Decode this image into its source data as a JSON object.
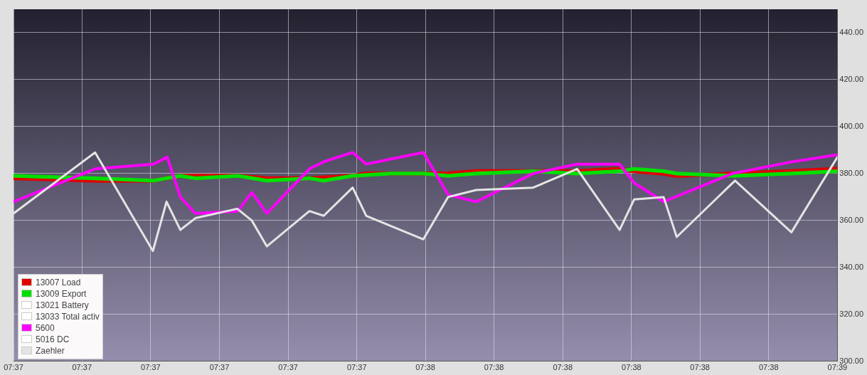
{
  "chart_data": {
    "type": "line",
    "legend": "bottom left",
    "grid": true,
    "marker": "none",
    "line_style": "solid",
    "xlim": [
      7.60917,
      7.6425
    ],
    "xticks": [
      {
        "value": 7.60917,
        "label": "07:37"
      },
      {
        "value": 7.61194,
        "label": "07:37"
      },
      {
        "value": 7.61472,
        "label": "07:37"
      },
      {
        "value": 7.6175,
        "label": "07:37"
      },
      {
        "value": 7.62028,
        "label": "07:37"
      },
      {
        "value": 7.62306,
        "label": "07:37"
      },
      {
        "value": 7.62583,
        "label": "07:38"
      },
      {
        "value": 7.62861,
        "label": "07:38"
      },
      {
        "value": 7.63139,
        "label": "07:38"
      },
      {
        "value": 7.63417,
        "label": "07:38"
      },
      {
        "value": 7.63694,
        "label": "07:38"
      },
      {
        "value": 7.63972,
        "label": "07:38"
      },
      {
        "value": 7.6425,
        "label": "07:39"
      }
    ],
    "ylim": [
      300,
      450
    ],
    "yticks": [
      {
        "value": 300,
        "label": "300.00"
      },
      {
        "value": 320,
        "label": "320.00"
      },
      {
        "value": 340,
        "label": "340.00"
      },
      {
        "value": 360,
        "label": "360.00"
      },
      {
        "value": 380,
        "label": "380.00"
      },
      {
        "value": 400,
        "label": "400.00"
      },
      {
        "value": 420,
        "label": "420.00"
      },
      {
        "value": 440,
        "label": "440.00"
      }
    ],
    "series": [
      {
        "name": "13007 Load",
        "color": "#e00000",
        "x": [
          7.60917,
          7.61247,
          7.61483,
          7.61592,
          7.61825,
          7.61942,
          7.62114,
          7.62289,
          7.62344,
          7.62575,
          7.62675,
          7.62789,
          7.63019,
          7.63197,
          7.63369,
          7.63428,
          7.63547,
          7.636,
          7.63833,
          7.64064,
          7.6425
        ],
        "values": [
          378,
          377,
          377,
          379,
          379,
          378,
          378,
          379,
          380,
          380,
          380,
          381,
          381,
          381,
          382,
          381,
          380,
          379,
          380,
          381,
          382
        ]
      },
      {
        "name": "13009 Export",
        "color": "#00e000",
        "x": [
          7.60917,
          7.61247,
          7.61483,
          7.61592,
          7.61653,
          7.61825,
          7.61942,
          7.62114,
          7.62172,
          7.62289,
          7.62444,
          7.62575,
          7.62675,
          7.62789,
          7.63019,
          7.63197,
          7.63369,
          7.63428,
          7.63547,
          7.636,
          7.63833,
          7.64064,
          7.6425
        ],
        "values": [
          379,
          378,
          377,
          379,
          378,
          379,
          377,
          378,
          377,
          379,
          380,
          380,
          379,
          380,
          381,
          380,
          381,
          382,
          381,
          380,
          379,
          380,
          381
        ]
      },
      {
        "name": "13021 Battery",
        "color": "#ffffff"
      },
      {
        "name": "13033 Total activ",
        "color": "#ffffff"
      },
      {
        "name": "5600",
        "color": "#ff00ff",
        "x": [
          7.60917,
          7.61247,
          7.61483,
          7.61539,
          7.61592,
          7.61653,
          7.61825,
          7.61881,
          7.61942,
          7.62114,
          7.62172,
          7.62289,
          7.62344,
          7.62575,
          7.62675,
          7.62789,
          7.63019,
          7.63197,
          7.63369,
          7.63428,
          7.63547,
          7.63825,
          7.64067,
          7.6425
        ],
        "values": [
          368,
          382,
          384,
          387,
          370,
          363,
          364,
          372,
          363,
          382,
          385,
          389,
          384,
          389,
          371,
          368,
          380,
          384,
          384,
          376,
          368,
          380,
          385,
          388
        ]
      },
      {
        "name": "5016 DC",
        "color": "#ffffff"
      },
      {
        "name": "Zaehler",
        "color": "#e4e4e4",
        "x": [
          7.60917,
          7.61247,
          7.61481,
          7.61536,
          7.61592,
          7.61653,
          7.61822,
          7.61881,
          7.61942,
          7.62114,
          7.62172,
          7.62289,
          7.62344,
          7.62575,
          7.62675,
          7.62789,
          7.63019,
          7.63197,
          7.63369,
          7.63428,
          7.63547,
          7.636,
          7.63836,
          7.64064,
          7.6425
        ],
        "values": [
          363,
          389,
          347,
          368,
          356,
          361,
          365,
          360,
          349,
          364,
          362,
          374,
          362,
          352,
          370,
          373,
          374,
          382,
          356,
          369,
          370,
          353,
          377,
          355,
          387
        ]
      }
    ]
  }
}
